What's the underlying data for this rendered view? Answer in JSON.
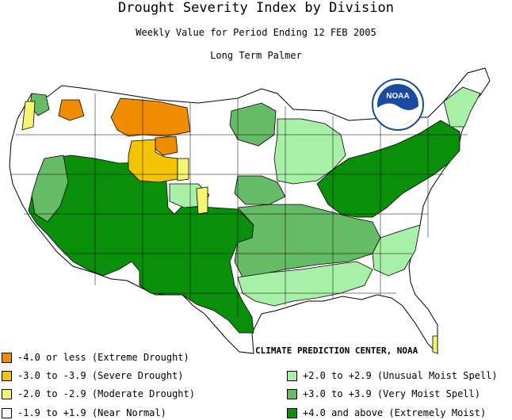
{
  "title": "Drought Severity Index by Division",
  "subtitle": "Weekly Value for Period Ending 12 FEB 2005",
  "index_name": "Long Term Palmer",
  "logo_text": "NOAA",
  "credit": "CLIMATE PREDICTION CENTER, NOAA",
  "colors": {
    "extreme_drought": "#f08c00",
    "severe_drought": "#f5c400",
    "moderate_drought": "#f5f571",
    "near_normal": "#ffffff",
    "unusual_moist": "#a8f0a8",
    "very_moist": "#66bb66",
    "extremely_moist": "#0a8f0a"
  },
  "legend": [
    {
      "label": "-4.0 or less (Extreme Drought)",
      "color": "#f08c00"
    },
    {
      "label": "-3.0 to -3.9 (Severe Drought)",
      "color": "#f5c400"
    },
    {
      "label": "-2.0 to -2.9 (Moderate Drought)",
      "color": "#f5f571"
    },
    {
      "label": "-1.9 to +1.9 (Near Normal)",
      "color": "#ffffff"
    },
    {
      "label": "+2.0 to +2.9 (Unusual Moist Spell)",
      "color": "#a8f0a8"
    },
    {
      "label": "+3.0 to +3.9 (Very Moist Spell)",
      "color": "#66bb66"
    },
    {
      "label": "+4.0 and above (Extremely Moist)",
      "color": "#0a8f0a"
    }
  ]
}
